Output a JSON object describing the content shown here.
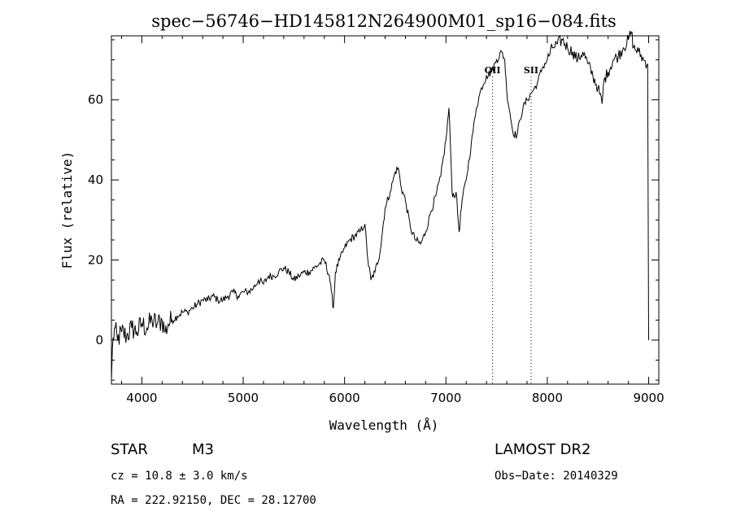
{
  "chart_data": {
    "type": "line",
    "title": "spec−56746−HD145812N264900M01_sp16−084.fits",
    "xlabel": "Wavelength (Å)",
    "ylabel": "Flux (relative)",
    "xlim": [
      3700,
      9100
    ],
    "ylim": [
      -11,
      76
    ],
    "x_ticks": [
      4000,
      5000,
      6000,
      7000,
      8000,
      9000
    ],
    "x_tick_labels": [
      "4000",
      "5000",
      "6000",
      "7000",
      "8000",
      "9000"
    ],
    "y_ticks": [
      0,
      20,
      40,
      60
    ],
    "y_tick_labels": [
      "0",
      "20",
      "40",
      "60"
    ],
    "grid": false,
    "legend": "none",
    "line_color": "#000000",
    "series": [
      {
        "x": [
          3700,
          3710,
          3730,
          3760,
          3800,
          3850,
          3900,
          3950,
          4000,
          4050,
          4100,
          4150,
          4200,
          4230,
          4260,
          4300,
          4350,
          4400,
          4450,
          4500,
          4550,
          4600,
          4650,
          4700,
          4750,
          4800,
          4850,
          4900,
          4950,
          5000,
          5050,
          5100,
          5150,
          5200,
          5250,
          5300,
          5350,
          5400,
          5450,
          5500,
          5550,
          5600,
          5650,
          5700,
          5750,
          5800,
          5850,
          5870,
          5890,
          5910,
          5950,
          6000,
          6050,
          6100,
          6150,
          6200,
          6230,
          6260,
          6300,
          6350,
          6400,
          6450,
          6500,
          6530,
          6560,
          6600,
          6650,
          6700,
          6750,
          6800,
          6850,
          6900,
          6950,
          7000,
          7030,
          7050,
          7060,
          7080,
          7100,
          7130,
          7160,
          7200,
          7250,
          7300,
          7350,
          7400,
          7450,
          7500,
          7550,
          7580,
          7600,
          7630,
          7660,
          7700,
          7730,
          7760,
          7800,
          7850,
          7900,
          7950,
          8000,
          8050,
          8100,
          8150,
          8200,
          8250,
          8300,
          8350,
          8400,
          8450,
          8500,
          8540,
          8560,
          8600,
          8650,
          8700,
          8750,
          8800,
          8830,
          8850,
          8900,
          8950,
          8990,
          9000
        ],
        "y": [
          -10,
          -2,
          3,
          0,
          2,
          1,
          3,
          2,
          4,
          3,
          5,
          4,
          5,
          2,
          4,
          5,
          6,
          7,
          7,
          8,
          9,
          10,
          10,
          11,
          10,
          10,
          11,
          12,
          11,
          12,
          12,
          13,
          15,
          14,
          16,
          16,
          17,
          18,
          17,
          15,
          16,
          17,
          17,
          18,
          19,
          20,
          16,
          12,
          8,
          17,
          20,
          23,
          25,
          26,
          27,
          29,
          20,
          15,
          17,
          22,
          33,
          37,
          42,
          43,
          38,
          35,
          28,
          25,
          24,
          27,
          32,
          36,
          41,
          50,
          58,
          45,
          37,
          36,
          37,
          27,
          35,
          40,
          49,
          58,
          63,
          66,
          67,
          70,
          72,
          70,
          62,
          57,
          52,
          51,
          55,
          58,
          60,
          62,
          64,
          68,
          70,
          73,
          74,
          75,
          73,
          72,
          70,
          72,
          69,
          66,
          63,
          59,
          65,
          67,
          70,
          71,
          73,
          75,
          77,
          73,
          72,
          70,
          69,
          0
        ]
      }
    ],
    "annotations": [
      {
        "label": "OII",
        "x": 7460
      },
      {
        "label": "SII",
        "x": 7840
      }
    ]
  },
  "info": {
    "class_label": "STAR",
    "subclass_label": "M3",
    "cz_text": "cz = 10.8 ± 3.0 km/s",
    "coords_text": "RA = 222.92150, DEC =  28.12700",
    "survey_label": "LAMOST DR2",
    "obs_date_text": "Obs−Date: 20140329"
  }
}
